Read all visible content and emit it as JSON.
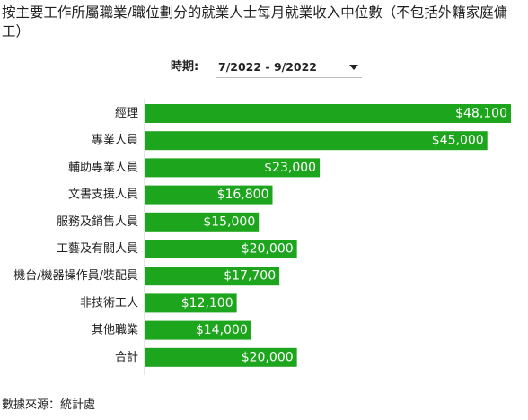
{
  "title": "按主要工作所屬職業/職位劃分的就業人士每月就業收入中位數（不包括外籍家庭傭工）",
  "filter": {
    "label": "時期:",
    "selected": "7/2022 - 9/2022"
  },
  "source": "數據來源：統計處",
  "colors": {
    "bar": "#1ea51e",
    "axis": "#cccccc"
  },
  "chart_data": {
    "type": "bar",
    "orientation": "horizontal",
    "categories": [
      "經理",
      "專業人員",
      "輔助專業人員",
      "文書支援人員",
      "服務及銷售人員",
      "工藝及有關人員",
      "機台/機器操作員/裝配員",
      "非技術工人",
      "其他職業",
      "合計"
    ],
    "values": [
      48100,
      45000,
      23000,
      16800,
      15000,
      20000,
      17700,
      12100,
      14000,
      20000
    ],
    "value_labels": [
      "$48,100",
      "$45,000",
      "$23,000",
      "$16,800",
      "$15,000",
      "$20,000",
      "$17,700",
      "$12,100",
      "$14,000",
      "$20,000"
    ],
    "xlim": [
      0,
      48100
    ],
    "grid": false
  }
}
